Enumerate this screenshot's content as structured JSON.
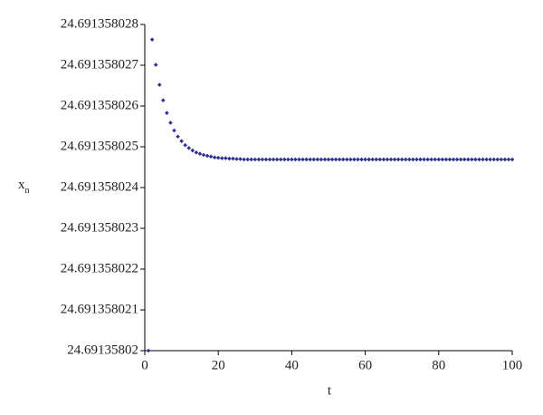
{
  "chart_data": {
    "type": "scatter",
    "x_label": "t",
    "y_label": "x",
    "y_label_subscript": "n",
    "color": "#2e3192",
    "xlim": [
      0,
      100
    ],
    "xticks": [
      0,
      20,
      40,
      60,
      80,
      100
    ],
    "ylim": [
      24.69135802,
      24.691358028
    ],
    "yticks": [
      24.69135802,
      24.691358021,
      24.691358022,
      24.691358023,
      24.691358024,
      24.691358025,
      24.691358026,
      24.691358027,
      24.691358028
    ],
    "x": [
      1,
      2,
      3,
      4,
      5,
      6,
      7,
      8,
      9,
      10,
      11,
      12,
      13,
      14,
      15,
      16,
      17,
      18,
      19,
      20,
      21,
      22,
      23,
      24,
      25,
      26,
      27,
      28,
      29,
      30,
      31,
      32,
      33,
      34,
      35,
      36,
      37,
      38,
      39,
      40,
      41,
      42,
      43,
      44,
      45,
      46,
      47,
      48,
      49,
      50,
      51,
      52,
      53,
      54,
      55,
      56,
      57,
      58,
      59,
      60,
      61,
      62,
      63,
      64,
      65,
      66,
      67,
      68,
      69,
      70,
      71,
      72,
      73,
      74,
      75,
      76,
      77,
      78,
      79,
      80,
      81,
      82,
      83,
      84,
      85,
      86,
      87,
      88,
      89,
      90,
      91,
      92,
      93,
      94,
      95,
      96,
      97,
      98,
      99,
      100
    ],
    "values": [
      24.69135802,
      24.69135802763,
      24.69135802701,
      24.69135802652,
      24.69135802614,
      24.69135802583,
      24.69135802559,
      24.6913580254,
      24.69135802525,
      24.69135802514,
      24.69135802504,
      24.69135802497,
      24.69135802491,
      24.69135802486,
      24.69135802483,
      24.6913580248,
      24.69135802478,
      24.69135802476,
      24.69135802474,
      24.69135802473,
      24.69135802472,
      24.69135802472,
      24.69135802471,
      24.69135802471,
      24.6913580247,
      24.6913580247,
      24.69135802469,
      24.69135802469,
      24.69135802469,
      24.69135802469,
      24.69135802469,
      24.69135802469,
      24.69135802469,
      24.69135802469,
      24.69135802469,
      24.69135802469,
      24.69135802469,
      24.69135802469,
      24.69135802469,
      24.69135802469,
      24.69135802469,
      24.69135802469,
      24.69135802469,
      24.69135802469,
      24.69135802469,
      24.69135802469,
      24.69135802469,
      24.69135802469,
      24.69135802469,
      24.69135802469,
      24.69135802469,
      24.69135802469,
      24.69135802469,
      24.69135802469,
      24.69135802469,
      24.69135802469,
      24.69135802469,
      24.69135802469,
      24.69135802469,
      24.69135802469,
      24.69135802469,
      24.69135802469,
      24.69135802469,
      24.69135802469,
      24.69135802469,
      24.69135802469,
      24.69135802469,
      24.69135802469,
      24.69135802469,
      24.69135802469,
      24.69135802469,
      24.69135802469,
      24.69135802469,
      24.69135802469,
      24.69135802469,
      24.69135802469,
      24.69135802469,
      24.69135802469,
      24.69135802469,
      24.69135802469,
      24.69135802469,
      24.69135802469,
      24.69135802469,
      24.69135802469,
      24.69135802469,
      24.69135802469,
      24.69135802469,
      24.69135802469,
      24.69135802469,
      24.69135802469,
      24.69135802469,
      24.69135802469,
      24.69135802469,
      24.69135802469,
      24.69135802469,
      24.69135802469,
      24.69135802469,
      24.69135802469,
      24.69135802469,
      24.69135802469
    ]
  }
}
